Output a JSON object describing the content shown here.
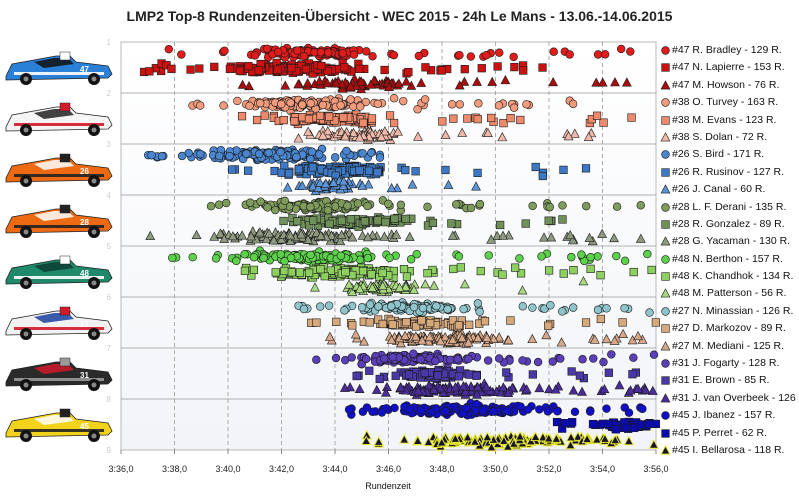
{
  "title": "LMP2 Top-8 Rundenzeiten-Übersicht  -  WEC 2015  -  24h Le Mans  -  13.06.-14.06.2015",
  "chart_data": {
    "type": "scatter",
    "title": "LMP2 Top-8 Rundenzeiten-Übersicht  -  WEC 2015  -  24h Le Mans  -  13.06.-14.06.2015",
    "xlabel": "Rundenzeit",
    "ylabel": "",
    "x_unit": "lap time (m:ss,s)",
    "xlim": [
      "3:36,0",
      "3:56,0"
    ],
    "x_ticks": [
      "3:36,0",
      "3:38,0",
      "3:40,0",
      "3:42,0",
      "3:44,0",
      "3:46,0",
      "3:48,0",
      "3:50,0",
      "3:52,0",
      "3:54,0",
      "3:56,0"
    ],
    "y_ticks": [
      "1",
      "2",
      "3",
      "4",
      "5",
      "6",
      "7",
      "8",
      "9"
    ],
    "ylim": [
      1,
      9
    ],
    "grid": {
      "vertical": "dashed",
      "horizontal": "solid"
    },
    "legend_position": "right",
    "series": [
      {
        "name": "#47 R. Bradley - 129 R.",
        "car": 1,
        "row": 1,
        "marker": "circle",
        "color": "#e21b1b",
        "laps": 129,
        "min": "3:37,0",
        "max": "3:55,5",
        "dense_min": "3:41,0",
        "dense_max": "3:46,5",
        "mode": "3:42,5"
      },
      {
        "name": "#47 N. Lapierre - 153 R.",
        "car": 1,
        "row": 2,
        "marker": "square",
        "color": "#cc1111",
        "laps": 153,
        "min": "3:36,5",
        "max": "3:52,5",
        "dense_min": "3:39,5",
        "dense_max": "3:46,0",
        "mode": "3:42,0"
      },
      {
        "name": "#47 M. Howson - 76 R.",
        "car": 1,
        "row": 3,
        "marker": "triangle",
        "color": "#aa0d0d",
        "laps": 76,
        "min": "3:40,5",
        "max": "3:55,5",
        "dense_min": "3:42,0",
        "dense_max": "3:48,0",
        "mode": "3:44,5"
      },
      {
        "name": "#38 O. Turvey - 163 R.",
        "car": 2,
        "row": 1,
        "marker": "circle",
        "color": "#f29a7c",
        "laps": 163,
        "min": "3:38,5",
        "max": "3:53,5",
        "dense_min": "3:40,0",
        "dense_max": "3:46,5",
        "mode": "3:42,5"
      },
      {
        "name": "#38 M. Evans - 123 R.",
        "car": 2,
        "row": 2,
        "marker": "square",
        "color": "#ee8a6a",
        "laps": 123,
        "min": "3:40,0",
        "max": "3:55,5",
        "dense_min": "3:41,5",
        "dense_max": "3:47,0",
        "mode": "3:43,5"
      },
      {
        "name": "#38 S. Dolan - 72 R.",
        "car": 2,
        "row": 3,
        "marker": "triangle",
        "color": "#f0b8a8",
        "laps": 72,
        "min": "3:41,5",
        "max": "3:54,5",
        "dense_min": "3:42,5",
        "dense_max": "3:48,0",
        "mode": "3:44,5"
      },
      {
        "name": "#26 S. Bird - 171 R.",
        "car": 3,
        "row": 1,
        "marker": "circle",
        "color": "#4a86d0",
        "laps": 171,
        "min": "3:37,0",
        "max": "3:46,5",
        "dense_min": "3:38,5",
        "dense_max": "3:45,5",
        "mode": "3:41,0"
      },
      {
        "name": "#26 R. Rusinov - 127 R.",
        "car": 3,
        "row": 2,
        "marker": "square",
        "color": "#3c78c4",
        "laps": 127,
        "min": "3:40,0",
        "max": "3:55,0",
        "dense_min": "3:42,0",
        "dense_max": "3:47,0",
        "mode": "3:44,0"
      },
      {
        "name": "#26 J. Canal - 60 R.",
        "car": 3,
        "row": 3,
        "marker": "triangle",
        "color": "#5b93d6",
        "laps": 60,
        "min": "3:41,5",
        "max": "3:49,5",
        "dense_min": "3:42,5",
        "dense_max": "3:46,0",
        "mode": "3:43,5"
      },
      {
        "name": "#28 L. F. Derani - 135 R.",
        "car": 4,
        "row": 1,
        "marker": "circle",
        "color": "#7f9c5c",
        "laps": 135,
        "min": "3:39,0",
        "max": "3:56,0",
        "dense_min": "3:40,5",
        "dense_max": "3:47,0",
        "mode": "3:43,0"
      },
      {
        "name": "#28 R. Gonzalez - 89 R.",
        "car": 4,
        "row": 2,
        "marker": "square",
        "color": "#70905a",
        "laps": 89,
        "min": "3:41,0",
        "max": "3:53,0",
        "dense_min": "3:42,0",
        "dense_max": "3:47,5",
        "mode": "3:44,0"
      },
      {
        "name": "#28 G. Yacaman - 130 R.",
        "car": 4,
        "row": 3,
        "marker": "triangle",
        "color": "#8e9a80",
        "laps": 130,
        "min": "3:37,0",
        "max": "3:56,0",
        "dense_min": "3:38,5",
        "dense_max": "3:47,0",
        "mode": "3:42,0"
      },
      {
        "name": "#48 N. Berthon - 157 R.",
        "car": 5,
        "row": 1,
        "marker": "circle",
        "color": "#5cd14a",
        "laps": 157,
        "min": "3:37,5",
        "max": "3:56,0",
        "dense_min": "3:39,5",
        "dense_max": "3:47,5",
        "mode": "3:43,0"
      },
      {
        "name": "#48 K. Chandhok - 134 R.",
        "car": 5,
        "row": 2,
        "marker": "square",
        "color": "#8ed060",
        "laps": 134,
        "min": "3:38,5",
        "max": "3:56,0",
        "dense_min": "3:40,5",
        "dense_max": "3:48,5",
        "mode": "3:44,0"
      },
      {
        "name": "#48 M. Patterson - 56 R.",
        "car": 5,
        "row": 3,
        "marker": "triangle",
        "color": "#a8d880",
        "laps": 56,
        "min": "3:41,5",
        "max": "3:56,0",
        "dense_min": "3:43,0",
        "dense_max": "3:49,0",
        "mode": "3:45,5"
      },
      {
        "name": "#27 N. Minassian - 126 R.",
        "car": 6,
        "row": 1,
        "marker": "circle",
        "color": "#8fc4cc",
        "laps": 126,
        "min": "3:42,5",
        "max": "3:56,0",
        "dense_min": "3:44,0",
        "dense_max": "3:50,0",
        "mode": "3:46,5"
      },
      {
        "name": "#27 D. Markozov - 89 R.",
        "car": 6,
        "row": 2,
        "marker": "square",
        "color": "#d7a87a",
        "laps": 89,
        "min": "3:43,0",
        "max": "3:56,0",
        "dense_min": "3:44,5",
        "dense_max": "3:50,5",
        "mode": "3:47,0"
      },
      {
        "name": "#27 M. Mediani - 125 R.",
        "car": 6,
        "row": 3,
        "marker": "triangle",
        "color": "#d8a888",
        "laps": 125,
        "min": "3:43,5",
        "max": "3:56,0",
        "dense_min": "3:45,0",
        "dense_max": "3:51,5",
        "mode": "3:48,0"
      },
      {
        "name": "#31 J. Fogarty - 128 R.",
        "car": 7,
        "row": 1,
        "marker": "circle",
        "color": "#5a3fb8",
        "laps": 128,
        "min": "3:43,0",
        "max": "3:56,0",
        "dense_min": "3:44,0",
        "dense_max": "3:50,0",
        "mode": "3:46,5"
      },
      {
        "name": "#31 E. Brown - 85 R.",
        "car": 7,
        "row": 2,
        "marker": "square",
        "color": "#4a38a8",
        "laps": 85,
        "min": "3:44,5",
        "max": "3:55,5",
        "dense_min": "3:45,5",
        "dense_max": "3:50,5",
        "mode": "3:47,5"
      },
      {
        "name": "#31 J. van Overbeek - 126 R.",
        "car": 7,
        "row": 3,
        "marker": "triangle",
        "color": "#4a2d9a",
        "laps": 126,
        "min": "3:44,0",
        "max": "3:56,0",
        "dense_min": "3:45,0",
        "dense_max": "3:53,0",
        "mode": "3:48,0"
      },
      {
        "name": "#45 J. Ibanez - 157 R.",
        "car": 8,
        "row": 1,
        "marker": "circle",
        "color": "#1010c8",
        "laps": 157,
        "min": "3:44,5",
        "max": "3:56,0",
        "dense_min": "3:45,5",
        "dense_max": "3:53,0",
        "mode": "3:48,5"
      },
      {
        "name": "#45 P. Perret - 62 R.",
        "car": 8,
        "row": 2,
        "marker": "square",
        "color": "#0a0ab0",
        "laps": 62,
        "min": "3:51,5",
        "max": "3:56,0",
        "dense_min": "3:53,5",
        "dense_max": "3:56,0",
        "mode": "3:55,0"
      },
      {
        "name": "#45 I. Bellarosa - 118 R.",
        "car": 8,
        "row": 3,
        "marker": "triangle",
        "color": "#141432",
        "edge": "#e6e62a",
        "laps": 118,
        "min": "3:44,5",
        "max": "3:56,0",
        "dense_min": "3:46,0",
        "dense_max": "3:55,5",
        "mode": "3:50,5"
      }
    ]
  },
  "cars": [
    {
      "number": "47",
      "body": "#2a7fd6",
      "accent": "#ffffff",
      "stripe": "#111111"
    },
    {
      "number": "38",
      "body": "#f4f4f4",
      "accent": "#d11a2a",
      "stripe": "#222222"
    },
    {
      "number": "26",
      "body": "#ee6a12",
      "accent": "#222222",
      "stripe": "#ffffff"
    },
    {
      "number": "28",
      "body": "#ee6a12",
      "accent": "#222222",
      "stripe": "#ffffff"
    },
    {
      "number": "48",
      "body": "#1f8a6a",
      "accent": "#ffffff",
      "stripe": "#0d3d30"
    },
    {
      "number": "27",
      "body": "#f2f2f2",
      "accent": "#d11a2a",
      "stripe": "#1a3fa0"
    },
    {
      "number": "31",
      "body": "#2a2a2a",
      "accent": "#9a9a9a",
      "stripe": "#d11a2a"
    },
    {
      "number": "45",
      "body": "#f2d21a",
      "accent": "#222222",
      "stripe": "#ffffff"
    }
  ]
}
